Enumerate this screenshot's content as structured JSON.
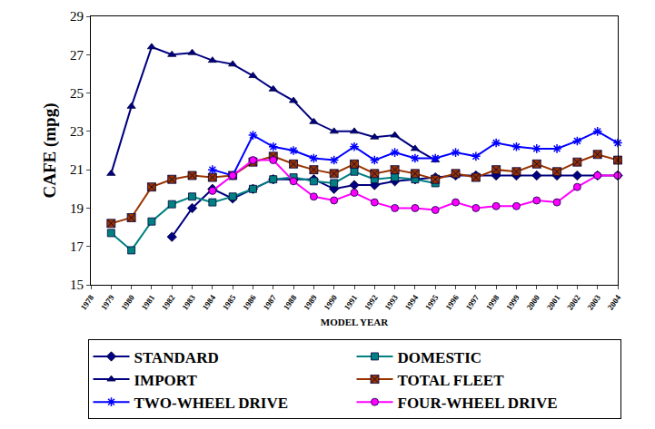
{
  "chart_data": {
    "type": "line",
    "x_label": "MODEL YEAR",
    "y_label": "CAFE (mpg)",
    "x": [
      1979,
      1980,
      1981,
      1982,
      1983,
      1984,
      1985,
      1986,
      1987,
      1988,
      1989,
      1990,
      1991,
      1992,
      1993,
      1994,
      1995,
      1996,
      1997,
      1998,
      1999,
      2000,
      2001,
      2002,
      2003,
      2004
    ],
    "xlim": [
      1978,
      2004
    ],
    "xticks": [
      1978,
      1979,
      1980,
      1981,
      1982,
      1983,
      1984,
      1985,
      1986,
      1987,
      1988,
      1989,
      1990,
      1991,
      1992,
      1993,
      1994,
      1995,
      1996,
      1997,
      1998,
      1999,
      2000,
      2001,
      2002,
      2003,
      2004
    ],
    "ylim": [
      15,
      29
    ],
    "yticks": [
      15,
      17,
      19,
      21,
      23,
      25,
      27,
      29
    ],
    "grid": false,
    "legend": "bottom",
    "series": [
      {
        "name": "STANDARD",
        "color": "#000080",
        "marker": "diamond",
        "line_style": "solid",
        "values": [
          null,
          null,
          null,
          17.5,
          19.0,
          20.0,
          19.5,
          20.0,
          20.5,
          20.5,
          20.5,
          20.0,
          20.2,
          20.2,
          20.4,
          20.5,
          20.6,
          20.7,
          20.7,
          20.7,
          20.7,
          20.7,
          20.7,
          20.7,
          20.7,
          20.7
        ]
      },
      {
        "name": "DOMESTIC",
        "color": "#008080",
        "marker": "square",
        "line_style": "solid",
        "values": [
          17.7,
          16.8,
          18.3,
          19.2,
          19.6,
          19.3,
          19.6,
          20.0,
          20.5,
          20.6,
          20.4,
          20.3,
          20.9,
          20.5,
          20.6,
          20.5,
          20.3,
          null,
          null,
          null,
          null,
          null,
          null,
          null,
          null,
          null
        ]
      },
      {
        "name": "IMPORT",
        "color": "#000080",
        "marker": "triangle",
        "line_style": "solid",
        "values": [
          20.8,
          24.3,
          27.4,
          27.0,
          27.1,
          26.7,
          26.5,
          25.9,
          25.2,
          24.6,
          23.5,
          23.0,
          23.0,
          22.7,
          22.8,
          22.1,
          21.5,
          null,
          null,
          null,
          null,
          null,
          null,
          null,
          null,
          null
        ]
      },
      {
        "name": "TOTAL FLEET",
        "color": "#993300",
        "marker": "square-x",
        "line_style": "solid",
        "values": [
          18.2,
          18.5,
          20.1,
          20.5,
          20.7,
          20.6,
          20.7,
          21.4,
          21.7,
          21.3,
          21.0,
          20.8,
          21.3,
          20.8,
          21.0,
          20.8,
          20.5,
          20.8,
          20.6,
          21.0,
          20.9,
          21.3,
          20.9,
          21.4,
          21.8,
          21.5
        ]
      },
      {
        "name": "TWO-WHEEL DRIVE",
        "color": "#0000FF",
        "marker": "asterisk",
        "line_style": "solid",
        "values": [
          null,
          null,
          null,
          null,
          null,
          21.0,
          20.7,
          22.8,
          22.2,
          22.0,
          21.6,
          21.5,
          22.2,
          21.5,
          21.9,
          21.6,
          21.6,
          21.9,
          21.7,
          22.4,
          22.2,
          22.1,
          22.1,
          22.5,
          23.0,
          22.4
        ]
      },
      {
        "name": "FOUR-WHEEL DRIVE",
        "color": "#FF00FF",
        "marker": "circle",
        "line_style": "solid",
        "values": [
          null,
          null,
          null,
          null,
          null,
          19.9,
          20.7,
          21.5,
          21.5,
          20.4,
          19.6,
          19.4,
          19.8,
          19.3,
          19.0,
          19.0,
          18.9,
          19.3,
          19.0,
          19.1,
          19.1,
          19.4,
          19.3,
          20.1,
          20.7,
          20.7
        ]
      }
    ]
  }
}
